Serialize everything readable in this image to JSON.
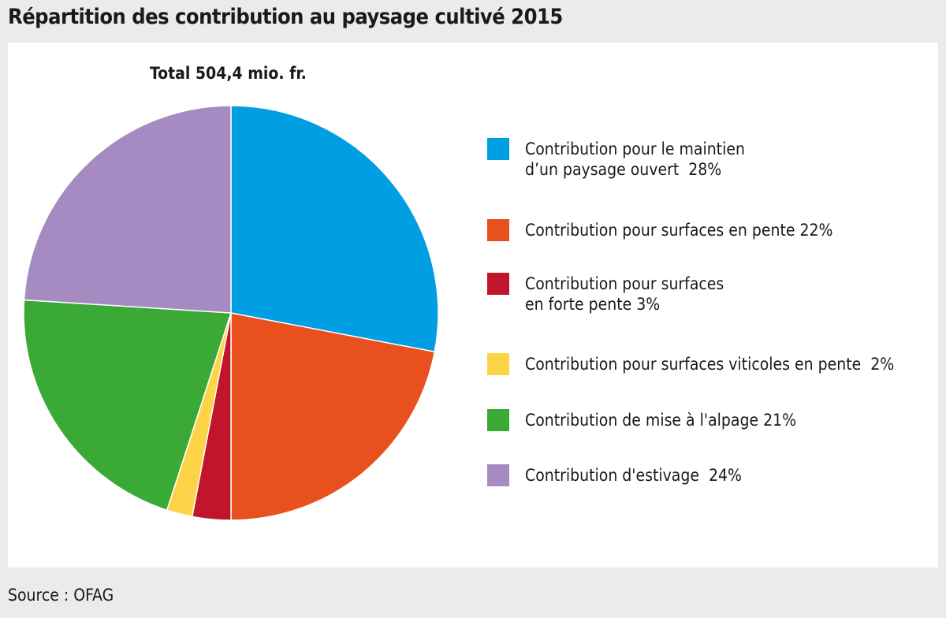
{
  "title": "Répartition des contribution au paysage cultivé 2015",
  "subtitle": "Total 504,4 mio. fr.",
  "source": "Source : OFAG",
  "chart_data": {
    "type": "pie",
    "title": "Répartition des contribution au paysage cultivé 2015",
    "subtitle": "Total 504,4 mio. fr.",
    "unit": "%",
    "legend_position": "right",
    "slices": [
      {
        "label": "Contribution pour le maintien\nd’un paysage ouvert  28%",
        "value": 28,
        "color": "#009fe3"
      },
      {
        "label": "Contribution pour surfaces en pente 22%",
        "value": 22,
        "color": "#e8501e"
      },
      {
        "label": "Contribution pour surfaces\nen forte pente 3%",
        "value": 3,
        "color": "#c0152a"
      },
      {
        "label": "Contribution pour surfaces viticoles en pente  2%",
        "value": 2,
        "color": "#fdd447"
      },
      {
        "label": "Contribution de mise à l'alpage 21%",
        "value": 21,
        "color": "#3aa935"
      },
      {
        "label": "Contribution d'estivage  24%",
        "value": 24,
        "color": "#a58bc1"
      }
    ]
  }
}
